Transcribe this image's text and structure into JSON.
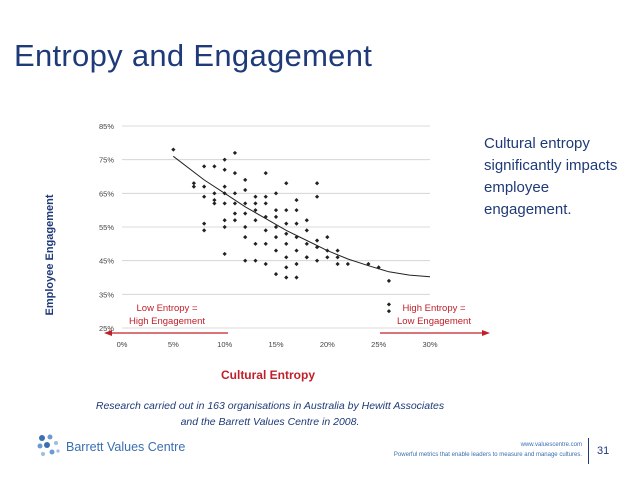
{
  "slide": {
    "title": "Entropy and Engagement",
    "note": "Cultural entropy significantly impacts employee engagement.",
    "source_line1": "Research carried out in 163 organisations in Australia by Hewitt Associates",
    "source_line2": "and the Barrett Values Centre in 2008.",
    "logo_text": "Barrett Values Centre",
    "footer_url": "www.valuescentre.com",
    "footer_tagline": "Powerful metrics that enable leaders to measure and manage cultures.",
    "page_number": "31"
  },
  "colors": {
    "title": "#1f3a78",
    "accent_red": "#c0202a",
    "points": "#222222",
    "trend": "#222222",
    "grid": "#cfcfcf",
    "arrow": "#c0202a"
  },
  "chart_data": {
    "type": "scatter",
    "xlabel": "Cultural Entropy",
    "ylabel": "Employee Engagement",
    "xlim": [
      0,
      30
    ],
    "ylim": [
      25,
      85
    ],
    "xticks": [
      "0%",
      "5%",
      "10%",
      "15%",
      "20%",
      "25%",
      "30%"
    ],
    "xtick_values": [
      0,
      5,
      10,
      15,
      20,
      25,
      30
    ],
    "yticks": [
      "25%",
      "35%",
      "45%",
      "55%",
      "65%",
      "75%",
      "85%"
    ],
    "ytick_values": [
      25,
      35,
      45,
      55,
      65,
      75,
      85
    ],
    "grid": "horizontal",
    "annotations": {
      "low": [
        "Low Entropy =",
        "High Engagement"
      ],
      "high": [
        "High Entropy =",
        "Low Engagement"
      ]
    },
    "trendline": {
      "type": "polynomial",
      "points": [
        [
          5,
          76
        ],
        [
          8,
          69
        ],
        [
          10,
          65
        ],
        [
          12,
          61
        ],
        [
          14,
          57.5
        ],
        [
          16,
          54
        ],
        [
          18,
          51
        ],
        [
          20,
          48
        ],
        [
          22,
          45.5
        ],
        [
          24,
          43.5
        ],
        [
          26,
          41.7
        ],
        [
          28,
          40.7
        ],
        [
          30,
          40.2
        ]
      ]
    },
    "points": [
      [
        5,
        78
      ],
      [
        7,
        67
      ],
      [
        7,
        68
      ],
      [
        8,
        73
      ],
      [
        8,
        67
      ],
      [
        8,
        64
      ],
      [
        8,
        56
      ],
      [
        8,
        54
      ],
      [
        9,
        73
      ],
      [
        9,
        65
      ],
      [
        9,
        63
      ],
      [
        10,
        75
      ],
      [
        10,
        72
      ],
      [
        10,
        67
      ],
      [
        10,
        65
      ],
      [
        10,
        62
      ],
      [
        10,
        57
      ],
      [
        10,
        55
      ],
      [
        10,
        47
      ],
      [
        11,
        77
      ],
      [
        11,
        71
      ],
      [
        11,
        65
      ],
      [
        11,
        62
      ],
      [
        11,
        59
      ],
      [
        11,
        57
      ],
      [
        12,
        69
      ],
      [
        12,
        66
      ],
      [
        12,
        62
      ],
      [
        12,
        59
      ],
      [
        12,
        55
      ],
      [
        12,
        52
      ],
      [
        13,
        64
      ],
      [
        13,
        60
      ],
      [
        13,
        57
      ],
      [
        13,
        50
      ],
      [
        13,
        45
      ],
      [
        14,
        71
      ],
      [
        14,
        64
      ],
      [
        14,
        62
      ],
      [
        14,
        58
      ],
      [
        14,
        54
      ],
      [
        14,
        50
      ],
      [
        14,
        44
      ],
      [
        15,
        65
      ],
      [
        15,
        60
      ],
      [
        15,
        58
      ],
      [
        15,
        55
      ],
      [
        15,
        52
      ],
      [
        15,
        48
      ],
      [
        15,
        41
      ],
      [
        16,
        68
      ],
      [
        16,
        60
      ],
      [
        16,
        56
      ],
      [
        16,
        53
      ],
      [
        16,
        50
      ],
      [
        16,
        46
      ],
      [
        16,
        43
      ],
      [
        17,
        63
      ],
      [
        17,
        60
      ],
      [
        17,
        56
      ],
      [
        17,
        52
      ],
      [
        17,
        48
      ],
      [
        17,
        44
      ],
      [
        18,
        57
      ],
      [
        18,
        54
      ],
      [
        18,
        50
      ],
      [
        18,
        46
      ],
      [
        19,
        68
      ],
      [
        19,
        64
      ],
      [
        19,
        51
      ],
      [
        19,
        49
      ],
      [
        19,
        45
      ],
      [
        20,
        52
      ],
      [
        20,
        48
      ],
      [
        20,
        46
      ],
      [
        21,
        48
      ],
      [
        21,
        46
      ],
      [
        21,
        44
      ],
      [
        22,
        44
      ],
      [
        24,
        44
      ],
      [
        25,
        43
      ],
      [
        26,
        39
      ],
      [
        26,
        32
      ],
      [
        26,
        30
      ],
      [
        12,
        45
      ],
      [
        16,
        40
      ],
      [
        17,
        40
      ],
      [
        18,
        46
      ],
      [
        9,
        62
      ],
      [
        13,
        62
      ]
    ]
  }
}
